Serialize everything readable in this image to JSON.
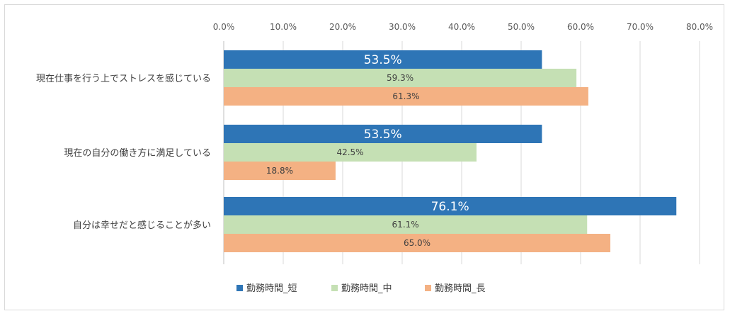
{
  "chart_data": {
    "type": "bar",
    "orientation": "horizontal",
    "categories": [
      "現在仕事を行う上でストレスを感じている",
      "現在の自分の働き方に満足している",
      "自分は幸せだと感じることが多い"
    ],
    "series": [
      {
        "name": "勤務時間_短",
        "color": "#2e75b6",
        "values": [
          53.5,
          53.5,
          76.1
        ],
        "labels": [
          "53.5%",
          "53.5%",
          "76.1%"
        ]
      },
      {
        "name": "勤務時間_中",
        "color": "#c5e0b4",
        "values": [
          59.3,
          42.5,
          61.1
        ],
        "labels": [
          "59.3%",
          "42.5%",
          "61.1%"
        ]
      },
      {
        "name": "勤務時間_長",
        "color": "#f4b183",
        "values": [
          61.3,
          18.8,
          65.0
        ],
        "labels": [
          "61.3%",
          "18.8%",
          "65.0%"
        ]
      }
    ],
    "xlim": [
      0,
      80
    ],
    "xticks": [
      0,
      10,
      20,
      30,
      40,
      50,
      60,
      70,
      80
    ],
    "xtick_labels": [
      "0.0%",
      "10.0%",
      "20.0%",
      "30.0%",
      "40.0%",
      "50.0%",
      "60.0%",
      "70.0%",
      "80.0%"
    ],
    "axis_position": "top",
    "grid": true,
    "legend_position": "bottom"
  }
}
